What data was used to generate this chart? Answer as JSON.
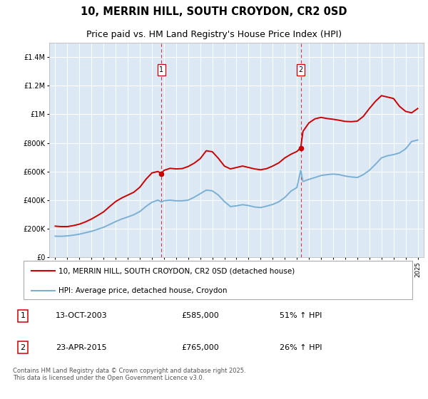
{
  "title": "10, MERRIN HILL, SOUTH CROYDON, CR2 0SD",
  "subtitle": "Price paid vs. HM Land Registry's House Price Index (HPI)",
  "title_fontsize": 10.5,
  "subtitle_fontsize": 9,
  "background_color": "#ffffff",
  "plot_bg_color": "#dce9f5",
  "grid_color": "#ffffff",
  "ylim": [
    0,
    1500000
  ],
  "yticks": [
    0,
    200000,
    400000,
    600000,
    800000,
    1000000,
    1200000,
    1400000
  ],
  "ytick_labels": [
    "£0",
    "£200K",
    "£400K",
    "£600K",
    "£800K",
    "£1M",
    "£1.2M",
    "£1.4M"
  ],
  "xlim_start": 1994.5,
  "xlim_end": 2025.5,
  "xtick_years": [
    1995,
    1996,
    1997,
    1998,
    1999,
    2000,
    2001,
    2002,
    2003,
    2004,
    2005,
    2006,
    2007,
    2008,
    2009,
    2010,
    2011,
    2012,
    2013,
    2014,
    2015,
    2016,
    2017,
    2018,
    2019,
    2020,
    2021,
    2022,
    2023,
    2024,
    2025
  ],
  "sale1_x": 2003.79,
  "sale1_y": 585000,
  "sale1_label": "1",
  "sale1_date": "13-OCT-2003",
  "sale1_price": "£585,000",
  "sale1_hpi": "51% ↑ HPI",
  "sale2_x": 2015.32,
  "sale2_y": 765000,
  "sale2_label": "2",
  "sale2_date": "23-APR-2015",
  "sale2_price": "£765,000",
  "sale2_hpi": "26% ↑ HPI",
  "line1_color": "#cc0000",
  "line2_color": "#7ab0d4",
  "vline_color": "#cc0000",
  "legend_label1": "10, MERRIN HILL, SOUTH CROYDON, CR2 0SD (detached house)",
  "legend_label2": "HPI: Average price, detached house, Croydon",
  "footer": "Contains HM Land Registry data © Crown copyright and database right 2025.\nThis data is licensed under the Open Government Licence v3.0.",
  "hpi_data_x": [
    1995.0,
    1995.5,
    1996.0,
    1996.5,
    1997.0,
    1997.5,
    1998.0,
    1998.5,
    1999.0,
    1999.5,
    2000.0,
    2000.5,
    2001.0,
    2001.5,
    2002.0,
    2002.5,
    2003.0,
    2003.5,
    2003.79,
    2004.0,
    2004.5,
    2005.0,
    2005.5,
    2006.0,
    2006.5,
    2007.0,
    2007.5,
    2008.0,
    2008.5,
    2009.0,
    2009.5,
    2010.0,
    2010.5,
    2011.0,
    2011.5,
    2012.0,
    2012.5,
    2013.0,
    2013.5,
    2014.0,
    2014.5,
    2015.0,
    2015.32,
    2015.5,
    2016.0,
    2016.5,
    2017.0,
    2017.5,
    2018.0,
    2018.5,
    2019.0,
    2019.5,
    2020.0,
    2020.5,
    2021.0,
    2021.5,
    2022.0,
    2022.5,
    2023.0,
    2023.5,
    2024.0,
    2024.5,
    2025.0
  ],
  "hpi_data_y": [
    148000,
    147000,
    150000,
    155000,
    162000,
    172000,
    182000,
    196000,
    210000,
    230000,
    250000,
    268000,
    282000,
    298000,
    320000,
    355000,
    385000,
    400000,
    387000,
    395000,
    400000,
    395000,
    395000,
    400000,
    420000,
    445000,
    470000,
    465000,
    435000,
    390000,
    355000,
    360000,
    368000,
    362000,
    352000,
    348000,
    358000,
    370000,
    388000,
    418000,
    462000,
    488000,
    607000,
    530000,
    545000,
    558000,
    572000,
    578000,
    582000,
    578000,
    568000,
    562000,
    558000,
    578000,
    608000,
    650000,
    695000,
    710000,
    718000,
    730000,
    758000,
    810000,
    820000
  ],
  "price_data_x": [
    1995.0,
    1995.5,
    1996.0,
    1996.5,
    1997.0,
    1997.5,
    1998.0,
    1998.5,
    1999.0,
    1999.5,
    2000.0,
    2000.5,
    2001.0,
    2001.5,
    2002.0,
    2002.5,
    2003.0,
    2003.5,
    2003.79,
    2004.0,
    2004.5,
    2005.0,
    2005.5,
    2006.0,
    2006.5,
    2007.0,
    2007.5,
    2008.0,
    2008.5,
    2009.0,
    2009.5,
    2010.0,
    2010.5,
    2011.0,
    2011.5,
    2012.0,
    2012.5,
    2013.0,
    2013.5,
    2014.0,
    2014.5,
    2015.0,
    2015.32,
    2015.5,
    2016.0,
    2016.5,
    2017.0,
    2017.5,
    2018.0,
    2018.5,
    2019.0,
    2019.5,
    2020.0,
    2020.5,
    2021.0,
    2021.5,
    2022.0,
    2022.5,
    2023.0,
    2023.5,
    2024.0,
    2024.5,
    2025.0
  ],
  "price_data_y": [
    218000,
    215000,
    215000,
    222000,
    232000,
    248000,
    268000,
    292000,
    318000,
    355000,
    390000,
    415000,
    435000,
    455000,
    490000,
    545000,
    590000,
    600000,
    585000,
    608000,
    622000,
    618000,
    620000,
    635000,
    658000,
    690000,
    745000,
    738000,
    692000,
    638000,
    618000,
    628000,
    638000,
    628000,
    618000,
    612000,
    620000,
    638000,
    660000,
    695000,
    720000,
    740000,
    765000,
    880000,
    940000,
    968000,
    978000,
    970000,
    965000,
    958000,
    950000,
    948000,
    952000,
    985000,
    1040000,
    1090000,
    1130000,
    1120000,
    1110000,
    1055000,
    1020000,
    1010000,
    1040000
  ]
}
